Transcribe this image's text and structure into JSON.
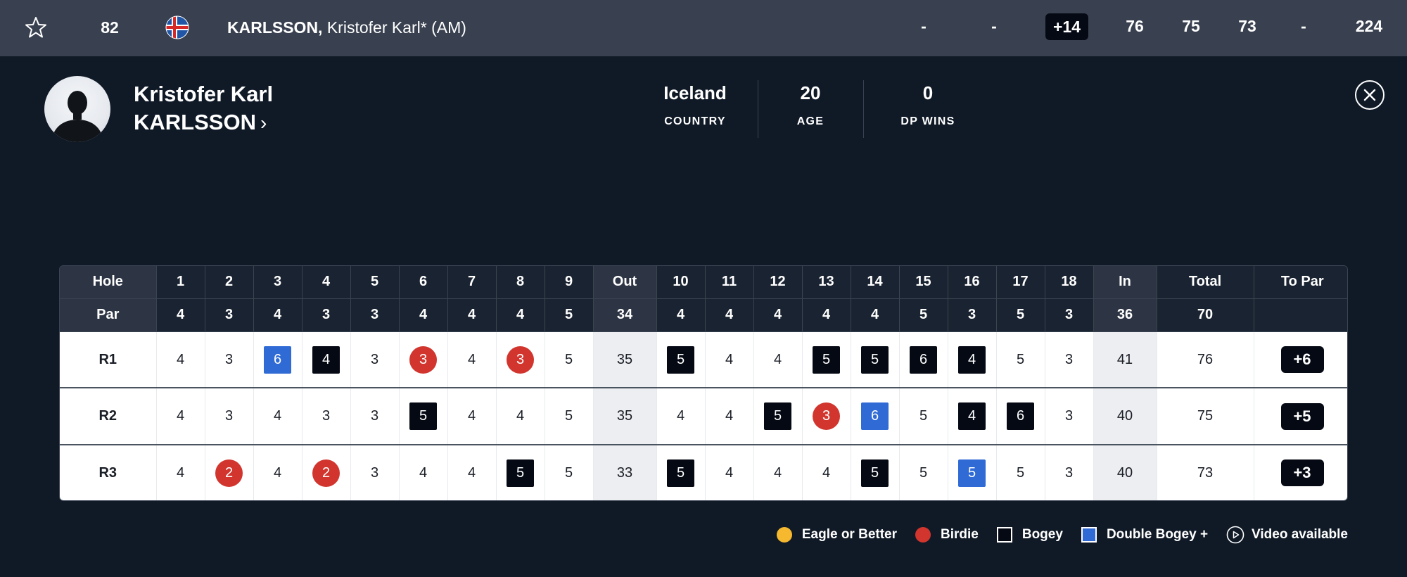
{
  "top_row": {
    "position": "82",
    "player_name_last": "KARLSSON,",
    "player_name_first": "Kristofer Karl* (AM)",
    "col1": "-",
    "col2": "-",
    "to_par": "+14",
    "r1": "76",
    "r2": "75",
    "r3": "73",
    "r4": "-",
    "total": "224",
    "flag": "iceland-flag"
  },
  "profile": {
    "first_name": "Kristofer Karl",
    "last_name": "KARLSSON",
    "stats": [
      {
        "value": "Iceland",
        "label": "COUNTRY"
      },
      {
        "value": "20",
        "label": "AGE"
      },
      {
        "value": "0",
        "label": "DP WINS"
      }
    ]
  },
  "scorecard": {
    "hole_label": "Hole",
    "par_label": "Par",
    "holes": [
      "1",
      "2",
      "3",
      "4",
      "5",
      "6",
      "7",
      "8",
      "9",
      "Out",
      "10",
      "11",
      "12",
      "13",
      "14",
      "15",
      "16",
      "17",
      "18",
      "In",
      "Total",
      "To Par"
    ],
    "par": [
      "4",
      "3",
      "4",
      "3",
      "3",
      "4",
      "4",
      "4",
      "5",
      "34",
      "4",
      "4",
      "4",
      "4",
      "4",
      "5",
      "3",
      "5",
      "3",
      "36",
      "70",
      ""
    ],
    "rounds": [
      {
        "label": "R1",
        "scores": [
          "4",
          "3",
          "6",
          "4",
          "3",
          "3",
          "4",
          "3",
          "5",
          "35",
          "5",
          "4",
          "4",
          "5",
          "5",
          "6",
          "4",
          "5",
          "3",
          "41",
          "76"
        ],
        "marks": [
          "",
          "",
          "dbogey",
          "bogey",
          "",
          "birdie",
          "",
          "birdie",
          "",
          "",
          "bogey",
          "",
          "",
          "bogey",
          "bogey",
          "bogey",
          "bogey",
          "",
          "",
          "",
          ""
        ],
        "to_par": "+6"
      },
      {
        "label": "R2",
        "scores": [
          "4",
          "3",
          "4",
          "3",
          "3",
          "5",
          "4",
          "4",
          "5",
          "35",
          "4",
          "4",
          "5",
          "3",
          "6",
          "5",
          "4",
          "6",
          "3",
          "40",
          "75"
        ],
        "marks": [
          "",
          "",
          "",
          "",
          "",
          "bogey",
          "",
          "",
          "",
          "",
          "",
          "",
          "bogey",
          "birdie",
          "dbogey",
          "",
          "bogey",
          "bogey",
          "",
          "",
          ""
        ],
        "to_par": "+5"
      },
      {
        "label": "R3",
        "scores": [
          "4",
          "2",
          "4",
          "2",
          "3",
          "4",
          "4",
          "5",
          "5",
          "33",
          "5",
          "4",
          "4",
          "4",
          "5",
          "5",
          "5",
          "5",
          "3",
          "40",
          "73"
        ],
        "marks": [
          "",
          "birdie",
          "",
          "birdie",
          "",
          "",
          "",
          "bogey",
          "",
          "",
          "bogey",
          "",
          "",
          "",
          "bogey",
          "",
          "dbogey",
          "",
          "",
          "",
          ""
        ],
        "to_par": "+3"
      }
    ]
  },
  "legend": [
    {
      "label": "Eagle or Better",
      "kind": "eagle"
    },
    {
      "label": "Birdie",
      "kind": "birdie"
    },
    {
      "label": "Bogey",
      "kind": "bogey"
    },
    {
      "label": "Double Bogey +",
      "kind": "dbogey"
    },
    {
      "label": "Video available",
      "kind": "video"
    }
  ],
  "colors": {
    "background": "#101a27",
    "top_row": "#394150",
    "birdie": "#d1352e",
    "eagle": "#f5b82e",
    "bogey": "#050914",
    "double_bogey": "#2f6ad5"
  }
}
